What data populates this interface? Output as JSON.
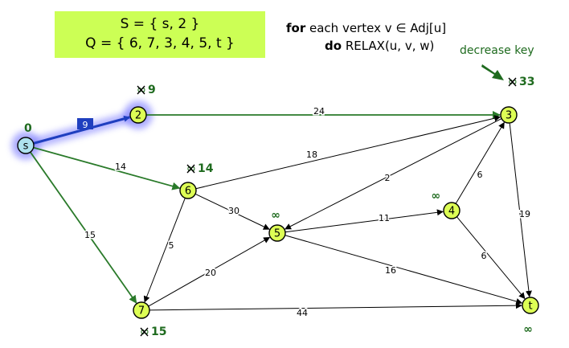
{
  "sets": {
    "S": "S = { s, 2 }",
    "Q": "Q = { 6, 7, 3, 4, 5, t }"
  },
  "algorithm": {
    "line1_kw": "for",
    "line1_rest": " each vertex v ∈ Adj[u]",
    "line2_kw": "do",
    "line2_rest": " RELAX(u, v, w)"
  },
  "annotation": {
    "decrease_key": "decrease key",
    "arrow_color": "#1f6b1f"
  },
  "colors": {
    "node_fill": "#ddff55",
    "source_fill": "#aee2ee",
    "source_glow": "#6a6aff",
    "tree_edge": "#2a7a2a",
    "selected_edge": "#1f3fbf",
    "edge": "#000000",
    "label_green": "#1f6b1f"
  },
  "nodes": [
    {
      "id": "s",
      "label": "s",
      "dist": "0",
      "source": true
    },
    {
      "id": "2",
      "label": "2",
      "old": "∞",
      "dist": "9"
    },
    {
      "id": "3",
      "label": "3",
      "old": "∞",
      "dist": "33"
    },
    {
      "id": "4",
      "label": "4",
      "dist": "∞"
    },
    {
      "id": "5",
      "label": "5",
      "dist": "∞"
    },
    {
      "id": "6",
      "label": "6",
      "old": "∞",
      "dist": "14"
    },
    {
      "id": "7",
      "label": "7",
      "old": "∞",
      "dist": "15"
    },
    {
      "id": "t",
      "label": "t",
      "dist": "∞"
    }
  ],
  "edges": [
    {
      "from": "s",
      "to": "2",
      "w": "9",
      "style": "selected"
    },
    {
      "from": "s",
      "to": "6",
      "w": "14",
      "style": "tree"
    },
    {
      "from": "s",
      "to": "7",
      "w": "15",
      "style": "tree"
    },
    {
      "from": "2",
      "to": "3",
      "w": "24",
      "style": "tree"
    },
    {
      "from": "6",
      "to": "3",
      "w": "18",
      "style": "normal"
    },
    {
      "from": "6",
      "to": "5",
      "w": "30",
      "style": "normal"
    },
    {
      "from": "6",
      "to": "7",
      "w": "5",
      "style": "normal"
    },
    {
      "from": "3",
      "to": "5",
      "w": "2",
      "style": "normal"
    },
    {
      "from": "3",
      "to": "t",
      "w": "19",
      "style": "normal"
    },
    {
      "from": "4",
      "to": "3",
      "w": "6",
      "style": "normal"
    },
    {
      "from": "4",
      "to": "t",
      "w": "6",
      "style": "normal"
    },
    {
      "from": "5",
      "to": "4",
      "w": "11",
      "style": "normal"
    },
    {
      "from": "5",
      "to": "t",
      "w": "16",
      "style": "normal"
    },
    {
      "from": "7",
      "to": "5",
      "w": "20",
      "style": "normal"
    },
    {
      "from": "7",
      "to": "t",
      "w": "44",
      "style": "normal"
    }
  ]
}
